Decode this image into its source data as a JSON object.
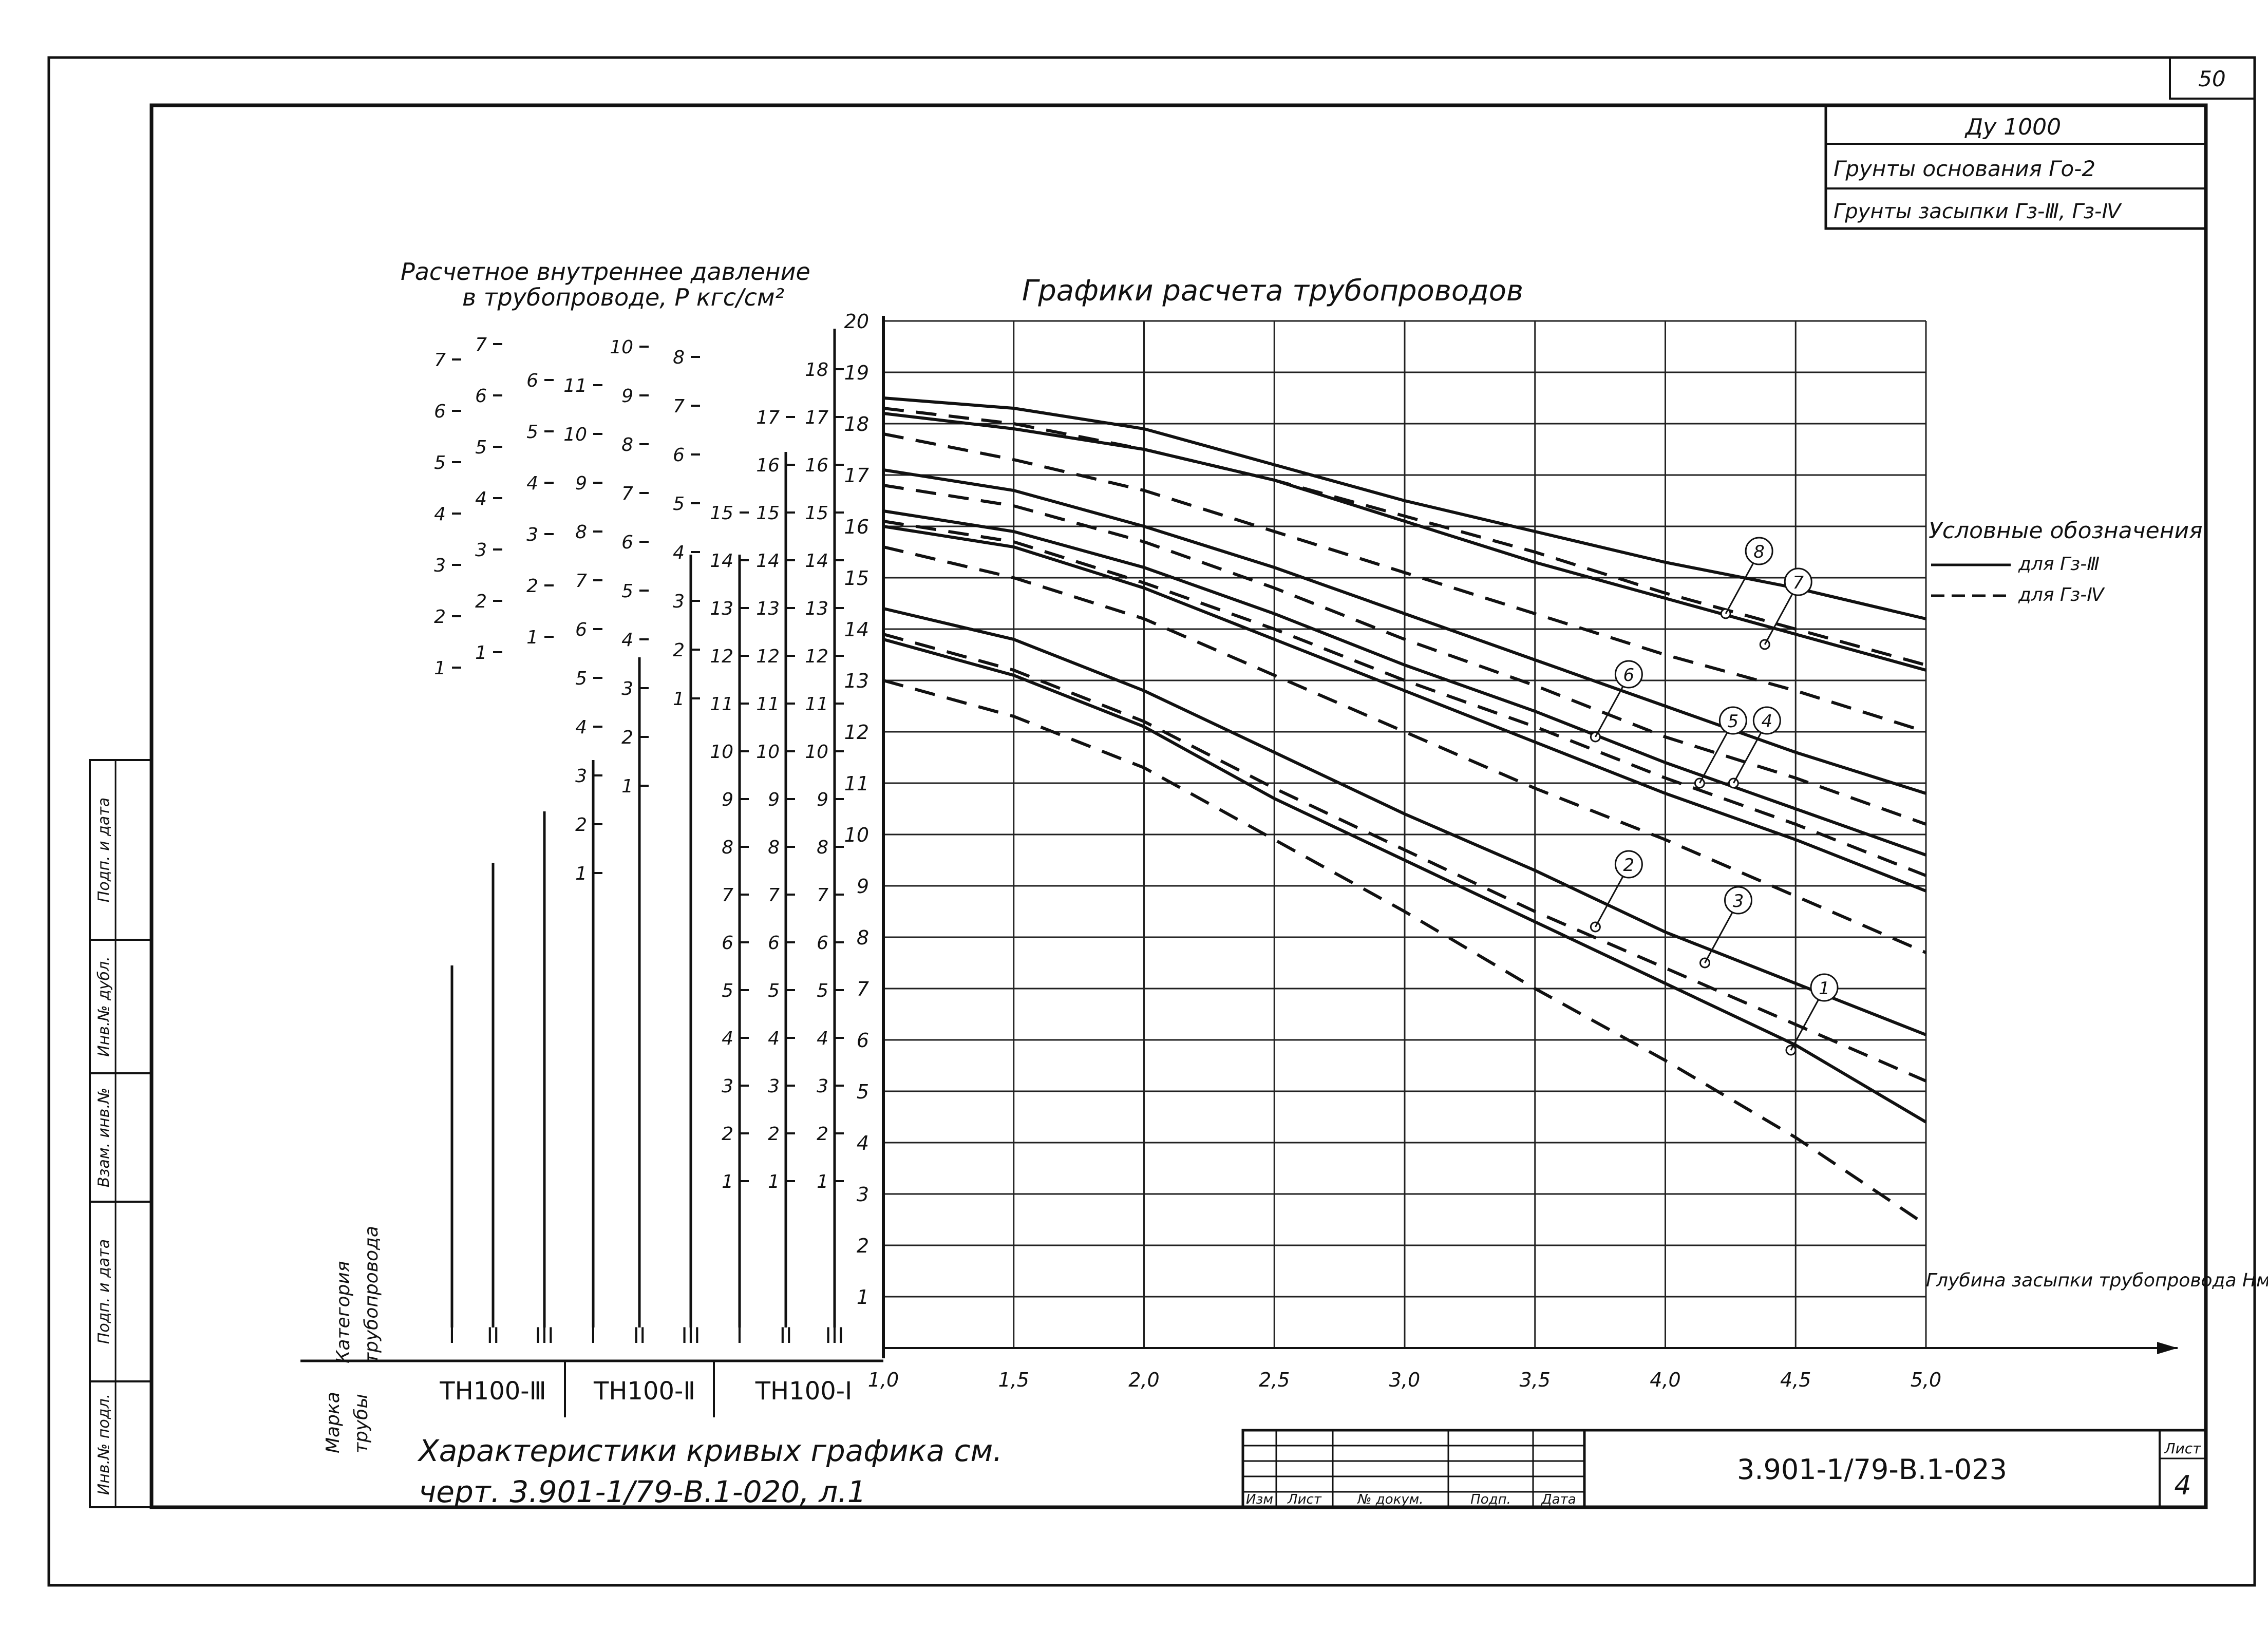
{
  "sheet": {
    "page_number": "50",
    "designation": "3.901-1/79-В.1-023",
    "sheet_label": "Лист",
    "sheet_number": "4",
    "title_block": {
      "diameter": "Ду 1000",
      "base_soil": "Грунты основания Гο-2",
      "backfill_soil": "Грунты засыпки Гз-Ⅲ, Гз-Ⅳ"
    },
    "stamp_columns": [
      "Изм",
      "Лист",
      "№ докум.",
      "Подп.",
      "Дата"
    ],
    "side_stamp": [
      "Инв.№ подл.",
      "Подп. и дата",
      "Взам. инв.№",
      "Инв.№ дубл.",
      "Подп. и дата"
    ],
    "footnote_line1": "Характеристики кривых графика см.",
    "footnote_line2": "черт. 3.901-1/79-В.1-020, л.1"
  },
  "pressure_panel": {
    "title_line1": "Расчетное внутреннее давление",
    "title_line2": "в трубопроводе, P кгс/см²",
    "category_label_line1": "Категория",
    "category_label_line2": "трубопровода",
    "mark_label_line1": "Марка",
    "mark_label_line2": "трубы",
    "groups": [
      {
        "mark": "ТН100-Ⅲ",
        "categories": [
          "I",
          "II",
          "III"
        ],
        "scales": [
          [
            "1",
            "2",
            "3",
            "4",
            "5",
            "6",
            "7"
          ],
          [
            "1",
            "2",
            "3",
            "4",
            "5",
            "6",
            "7",
            "8",
            "9"
          ],
          [
            "1",
            "2",
            "3",
            "4",
            "5",
            "6",
            "7",
            "8",
            "9",
            "10"
          ]
        ]
      },
      {
        "mark": "ТН100-Ⅱ",
        "categories": [
          "I",
          "II",
          "III"
        ],
        "scales": [
          [
            "1",
            "2",
            "3",
            "4",
            "5",
            "6",
            "7",
            "8",
            "9",
            "10",
            "11"
          ],
          [
            "1",
            "2",
            "3",
            "4",
            "5",
            "6",
            "7",
            "8",
            "9",
            "10",
            "11",
            "12",
            "13"
          ],
          [
            "1",
            "2",
            "3",
            "4",
            "5",
            "6",
            "7",
            "8",
            "9",
            "10",
            "11",
            "12",
            "13",
            "14",
            "15"
          ]
        ]
      },
      {
        "mark": "ТН100-I",
        "categories": [
          "I",
          "II",
          "III"
        ],
        "scales": [
          [
            "1",
            "2",
            "3",
            "4",
            "5",
            "6",
            "7",
            "8",
            "9",
            "10",
            "11",
            "12",
            "13",
            "14",
            "15"
          ],
          [
            "1",
            "2",
            "3",
            "4",
            "5",
            "6",
            "7",
            "8",
            "9",
            "10",
            "11",
            "12",
            "13",
            "14",
            "15",
            "16",
            "17"
          ],
          [
            "1",
            "2",
            "3",
            "4",
            "5",
            "6",
            "7",
            "8",
            "9",
            "10",
            "11",
            "12",
            "13",
            "14",
            "15",
            "16",
            "17",
            "18",
            "19",
            "20"
          ]
        ]
      }
    ]
  },
  "chart_data": {
    "type": "line",
    "title": "Графики расчета трубопроводов",
    "xlabel": "Глубина засыпки трубопровода Hм (до верха трубы)",
    "xlim": [
      1.0,
      5.0
    ],
    "ylim": [
      0,
      20
    ],
    "x_ticks": [
      "1,0",
      "1,5",
      "2,0",
      "2,5",
      "3,0",
      "3,5",
      "4,0",
      "4,5",
      "5,0"
    ],
    "y_ticks": [
      "1",
      "2",
      "3",
      "4",
      "5",
      "6",
      "7",
      "8",
      "9",
      "10",
      "11",
      "12",
      "13",
      "14",
      "15",
      "16",
      "17",
      "18",
      "19",
      "20"
    ],
    "grid": true,
    "legend_title": "Условные обозначения",
    "legend_items": [
      {
        "label": "для Гз-Ⅲ",
        "style": "solid"
      },
      {
        "label": "для Гз-Ⅳ",
        "style": "dashed"
      }
    ],
    "series": [
      {
        "name": "8",
        "style": "solid",
        "x": [
          1.0,
          1.5,
          2.0,
          2.5,
          3.0,
          3.5,
          4.0,
          4.5,
          5.0
        ],
        "y": [
          18.5,
          18.3,
          17.9,
          17.2,
          16.5,
          15.9,
          15.3,
          14.8,
          14.2
        ]
      },
      {
        "name": "8",
        "style": "dashed",
        "x": [
          1.0,
          1.5,
          2.0,
          2.5,
          3.0,
          3.5,
          4.0,
          4.5,
          5.0
        ],
        "y": [
          18.3,
          18.0,
          17.5,
          16.9,
          16.2,
          15.5,
          14.7,
          14.0,
          13.3
        ]
      },
      {
        "name": "7",
        "style": "solid",
        "x": [
          1.0,
          1.5,
          2.0,
          2.5,
          3.0,
          3.5,
          4.0,
          4.5,
          5.0
        ],
        "y": [
          18.2,
          17.9,
          17.5,
          16.9,
          16.1,
          15.3,
          14.6,
          13.9,
          13.2
        ]
      },
      {
        "name": "7",
        "style": "dashed",
        "x": [
          1.0,
          1.5,
          2.0,
          2.5,
          3.0,
          3.5,
          4.0,
          4.5,
          5.0
        ],
        "y": [
          17.8,
          17.3,
          16.7,
          15.9,
          15.1,
          14.3,
          13.5,
          12.8,
          12.0
        ]
      },
      {
        "name": "6",
        "style": "solid",
        "x": [
          1.0,
          1.5,
          2.0,
          2.5,
          3.0,
          3.5,
          4.0,
          4.5,
          5.0
        ],
        "y": [
          17.1,
          16.7,
          16.0,
          15.2,
          14.3,
          13.4,
          12.5,
          11.6,
          10.8
        ]
      },
      {
        "name": "6",
        "style": "dashed",
        "x": [
          1.0,
          1.5,
          2.0,
          2.5,
          3.0,
          3.5,
          4.0,
          4.5,
          5.0
        ],
        "y": [
          16.8,
          16.4,
          15.7,
          14.8,
          13.8,
          12.9,
          11.9,
          11.1,
          10.2
        ]
      },
      {
        "name": "5",
        "style": "solid",
        "x": [
          1.0,
          1.5,
          2.0,
          2.5,
          3.0,
          3.5,
          4.0,
          4.5,
          5.0
        ],
        "y": [
          16.3,
          15.9,
          15.2,
          14.3,
          13.3,
          12.4,
          11.4,
          10.5,
          9.6
        ]
      },
      {
        "name": "4",
        "style": "dashed",
        "x": [
          1.0,
          1.5,
          2.0,
          2.5,
          3.0,
          3.5,
          4.0,
          4.5,
          5.0
        ],
        "y": [
          16.1,
          15.7,
          14.9,
          14.0,
          13.0,
          12.1,
          11.1,
          10.2,
          9.2
        ]
      },
      {
        "name": "4",
        "style": "solid",
        "x": [
          1.0,
          1.5,
          2.0,
          2.5,
          3.0,
          3.5,
          4.0,
          4.5,
          5.0
        ],
        "y": [
          16.0,
          15.6,
          14.8,
          13.8,
          12.8,
          11.8,
          10.8,
          9.9,
          8.9
        ]
      },
      {
        "name": "3",
        "style": "dashed",
        "x": [
          1.0,
          1.5,
          2.0,
          2.5,
          3.0,
          3.5,
          4.0,
          4.5,
          5.0
        ],
        "y": [
          15.6,
          15.0,
          14.2,
          13.1,
          12.0,
          10.9,
          9.9,
          8.8,
          7.7
        ]
      },
      {
        "name": "2",
        "style": "solid",
        "x": [
          1.0,
          1.5,
          2.0,
          2.5,
          3.0,
          3.5,
          4.0,
          4.5,
          5.0
        ],
        "y": [
          14.4,
          13.8,
          12.8,
          11.6,
          10.4,
          9.3,
          8.1,
          7.1,
          6.1
        ]
      },
      {
        "name": "2",
        "style": "dashed",
        "x": [
          1.0,
          1.5,
          2.0,
          2.5,
          3.0,
          3.5,
          4.0,
          4.5,
          5.0
        ],
        "y": [
          13.9,
          13.2,
          12.2,
          10.9,
          9.7,
          8.5,
          7.4,
          6.3,
          5.2
        ]
      },
      {
        "name": "1",
        "style": "solid",
        "x": [
          1.0,
          1.5,
          2.0,
          2.5,
          3.0,
          3.5,
          4.0,
          4.5,
          5.0
        ],
        "y": [
          13.8,
          13.1,
          12.1,
          10.7,
          9.5,
          8.3,
          7.1,
          5.9,
          4.4
        ]
      },
      {
        "name": "1",
        "style": "dashed",
        "x": [
          1.0,
          1.5,
          2.0,
          2.5,
          3.0,
          3.5,
          4.0,
          4.5,
          5.0
        ],
        "y": [
          13.0,
          12.3,
          11.3,
          9.9,
          8.5,
          7.0,
          5.6,
          4.1,
          2.4
        ]
      }
    ],
    "curve_labels": [
      {
        "label": "8",
        "x": 4.35,
        "y": 15.4
      },
      {
        "label": "7",
        "x": 4.5,
        "y": 14.8
      },
      {
        "label": "6",
        "x": 3.85,
        "y": 13.0
      },
      {
        "label": "5",
        "x": 4.25,
        "y": 12.1
      },
      {
        "label": "4",
        "x": 4.38,
        "y": 12.1
      },
      {
        "label": "3",
        "x": 4.27,
        "y": 8.6
      },
      {
        "label": "2",
        "x": 3.85,
        "y": 9.3
      },
      {
        "label": "1",
        "x": 4.6,
        "y": 6.9
      }
    ]
  }
}
